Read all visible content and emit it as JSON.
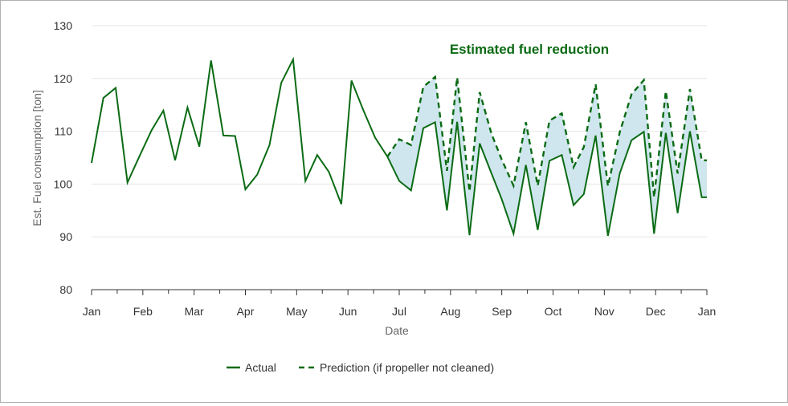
{
  "chart_data": {
    "type": "line",
    "xlabel": "Date",
    "ylabel": "Est. Fuel consumption [ton]",
    "ylim": [
      80,
      130
    ],
    "yticks": [
      80,
      90,
      100,
      110,
      120,
      130
    ],
    "x_tick_labels": [
      "Jan",
      "Feb",
      "Mar",
      "Apr",
      "May",
      "Jun",
      "Jul",
      "Aug",
      "Sep",
      "Oct",
      "Nov",
      "Dec",
      "Jan"
    ],
    "x_range_months": [
      0,
      12
    ],
    "grid": "horizontal",
    "legend_position": "bottom-center",
    "annotation": "Estimated fuel reduction",
    "colors": {
      "line": "#0b6b14",
      "fill": "#cfe6ee",
      "grid": "#e6e6e6",
      "axis": "#333333"
    },
    "series": [
      {
        "name": "Actual",
        "style": "solid",
        "x_months": [
          0.0,
          0.23,
          0.47,
          0.7,
          0.93,
          1.17,
          1.4,
          1.63,
          1.87,
          2.1,
          2.33,
          2.57,
          2.8,
          3.0,
          3.23,
          3.47,
          3.7,
          3.93,
          4.17,
          4.4,
          4.63,
          4.87,
          5.07,
          5.3,
          5.53,
          5.77,
          6.0,
          6.23,
          6.47,
          6.7,
          6.93,
          7.13,
          7.37,
          7.57,
          7.8,
          8.0,
          8.23,
          8.47,
          8.7,
          8.93,
          9.17,
          9.4,
          9.6,
          9.83,
          10.07,
          10.3,
          10.53,
          10.77,
          10.97,
          11.2,
          11.43,
          11.67,
          11.9,
          12.0
        ],
        "values": [
          104,
          116.3,
          118.2,
          100.3,
          105.2,
          110.2,
          113.9,
          104.5,
          114.5,
          107.1,
          123.4,
          109.2,
          109.1,
          99,
          101.8,
          107.4,
          119.2,
          123.6,
          100.6,
          105.5,
          102.3,
          96.2,
          119.6,
          114,
          108.8,
          105.2,
          100.6,
          98.8,
          110.6,
          111.7,
          95,
          111.8,
          90.3,
          107.7,
          102,
          97.1,
          90.6,
          103.6,
          91.3,
          104.4,
          105.5,
          96,
          98.1,
          109.2,
          90.2,
          102,
          108.3,
          109.9,
          90.6,
          109.7,
          94.5,
          110,
          97.5,
          97.5
        ]
      },
      {
        "name": "Prediction (if propeller not cleaned)",
        "style": "dashed",
        "x_months": [
          5.77,
          6.0,
          6.23,
          6.47,
          6.7,
          6.93,
          7.13,
          7.37,
          7.57,
          7.8,
          8.0,
          8.23,
          8.47,
          8.7,
          8.93,
          9.17,
          9.4,
          9.6,
          9.83,
          10.07,
          10.3,
          10.53,
          10.77,
          10.97,
          11.2,
          11.43,
          11.67,
          11.9,
          12.0
        ],
        "values": [
          105.2,
          108.5,
          107.4,
          118.4,
          120.3,
          102.5,
          120.2,
          98.6,
          117.4,
          109.5,
          104.6,
          99.7,
          111.7,
          99.7,
          112,
          113.4,
          103.2,
          107,
          118.9,
          99.6,
          109.8,
          117,
          119.7,
          97.5,
          117.6,
          102,
          118,
          104.5,
          104.5
        ]
      }
    ]
  }
}
